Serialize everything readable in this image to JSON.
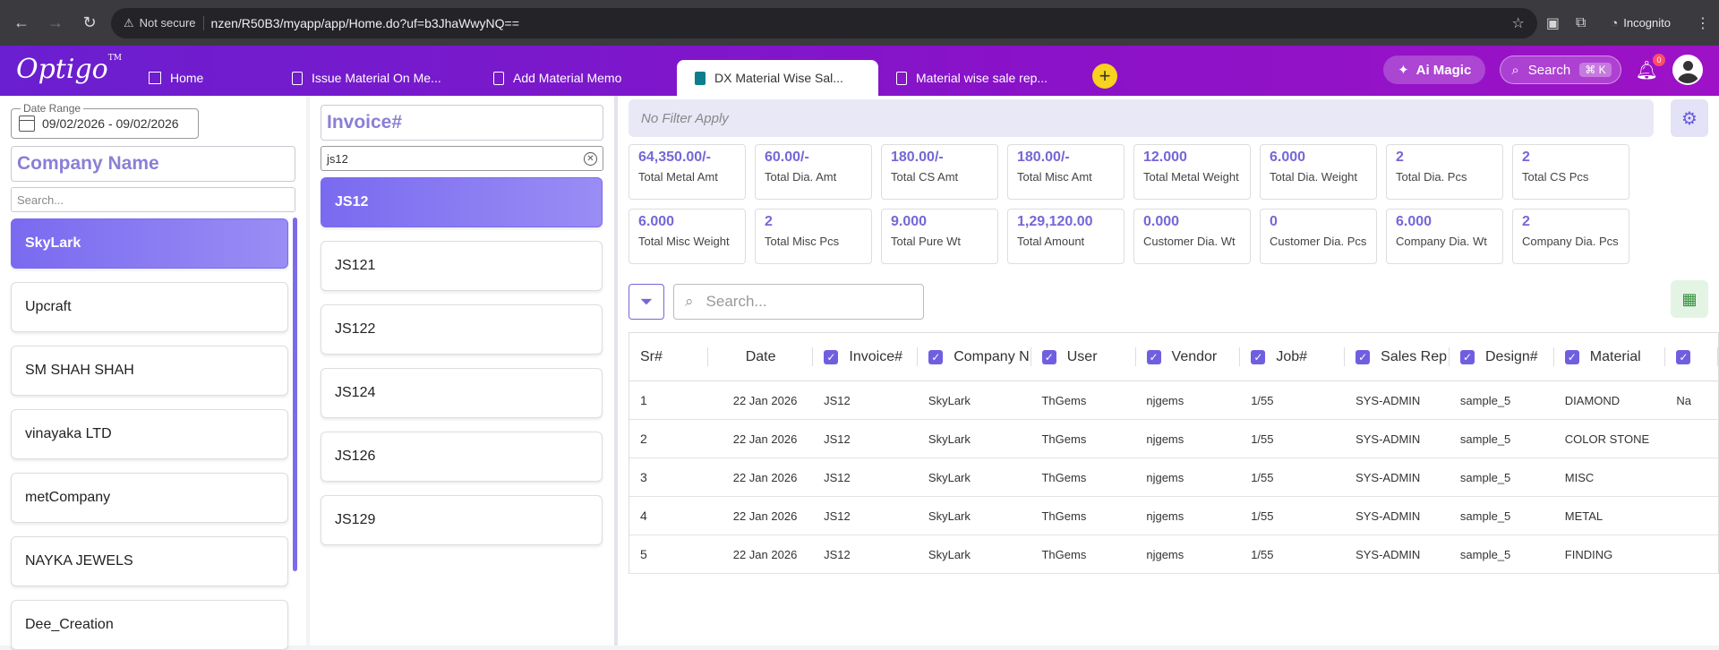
{
  "browser": {
    "security": "Not secure",
    "url": "nzen/R50B3/myapp/app/Home.do?uf=b3JhaWwyNQ==",
    "incognito_label": "Incognito"
  },
  "header": {
    "logo": "Optigo",
    "logo_tm": "TM",
    "home_tab": "Home",
    "tabs": [
      "Issue Material On Me...",
      "Add Material Memo",
      "DX Material Wise Sal...",
      "Material wise sale rep..."
    ],
    "ai_label": "Ai Magic",
    "search_label": "Search",
    "search_kbd": "⌘ K",
    "notif_count": "0"
  },
  "company": {
    "date_label": "Date Range",
    "date_value": "09/02/2026 - 09/02/2026",
    "heading": "Company Name",
    "search_placeholder": "Search...",
    "items": [
      "SkyLark",
      "Upcraft",
      "SM SHAH SHAH",
      "vinayaka LTD",
      "metCompany",
      "NAYKA JEWELS",
      "Dee_Creation"
    ]
  },
  "invoice": {
    "heading": "Invoice#",
    "search_value": "js12",
    "items": [
      "JS12",
      "JS121",
      "JS122",
      "JS124",
      "JS126",
      "JS129"
    ]
  },
  "report": {
    "filter_text": "No Filter Apply",
    "table_search_placeholder": "Search...",
    "cards": [
      {
        "value": "64,350.00/-",
        "label": "Total Metal Amt"
      },
      {
        "value": "60.00/-",
        "label": "Total Dia. Amt"
      },
      {
        "value": "180.00/-",
        "label": "Total CS Amt"
      },
      {
        "value": "180.00/-",
        "label": "Total Misc Amt"
      },
      {
        "value": "12.000",
        "label": "Total Metal Weight"
      },
      {
        "value": "6.000",
        "label": "Total Dia. Weight"
      },
      {
        "value": "2",
        "label": "Total Dia. Pcs"
      },
      {
        "value": "2",
        "label": "Total CS Pcs"
      },
      {
        "value": "6.000",
        "label": "Total Misc Weight"
      },
      {
        "value": "2",
        "label": "Total Misc Pcs"
      },
      {
        "value": "9.000",
        "label": "Total Pure Wt"
      },
      {
        "value": "1,29,120.00",
        "label": "Total Amount"
      },
      {
        "value": "0.000",
        "label": "Customer Dia. Wt"
      },
      {
        "value": "0",
        "label": "Customer Dia. Pcs"
      },
      {
        "value": "6.000",
        "label": "Company Dia. Wt"
      },
      {
        "value": "2",
        "label": "Company Dia. Pcs"
      }
    ],
    "columns": [
      "Sr#",
      "Date",
      "Invoice#",
      "Company N",
      "User",
      "Vendor",
      "Job#",
      "Sales Rep",
      "Design#",
      "Material"
    ],
    "rows": [
      [
        "1",
        "22 Jan 2026",
        "JS12",
        "SkyLark",
        "ThGems",
        "njgems",
        "1/55",
        "SYS-ADMIN",
        "sample_5",
        "DIAMOND",
        "Na"
      ],
      [
        "2",
        "22 Jan 2026",
        "JS12",
        "SkyLark",
        "ThGems",
        "njgems",
        "1/55",
        "SYS-ADMIN",
        "sample_5",
        "COLOR STONE",
        ""
      ],
      [
        "3",
        "22 Jan 2026",
        "JS12",
        "SkyLark",
        "ThGems",
        "njgems",
        "1/55",
        "SYS-ADMIN",
        "sample_5",
        "MISC",
        ""
      ],
      [
        "4",
        "22 Jan 2026",
        "JS12",
        "SkyLark",
        "ThGems",
        "njgems",
        "1/55",
        "SYS-ADMIN",
        "sample_5",
        "METAL",
        ""
      ],
      [
        "5",
        "22 Jan 2026",
        "JS12",
        "SkyLark",
        "ThGems",
        "njgems",
        "1/55",
        "SYS-ADMIN",
        "sample_5",
        "FINDING",
        ""
      ]
    ]
  }
}
